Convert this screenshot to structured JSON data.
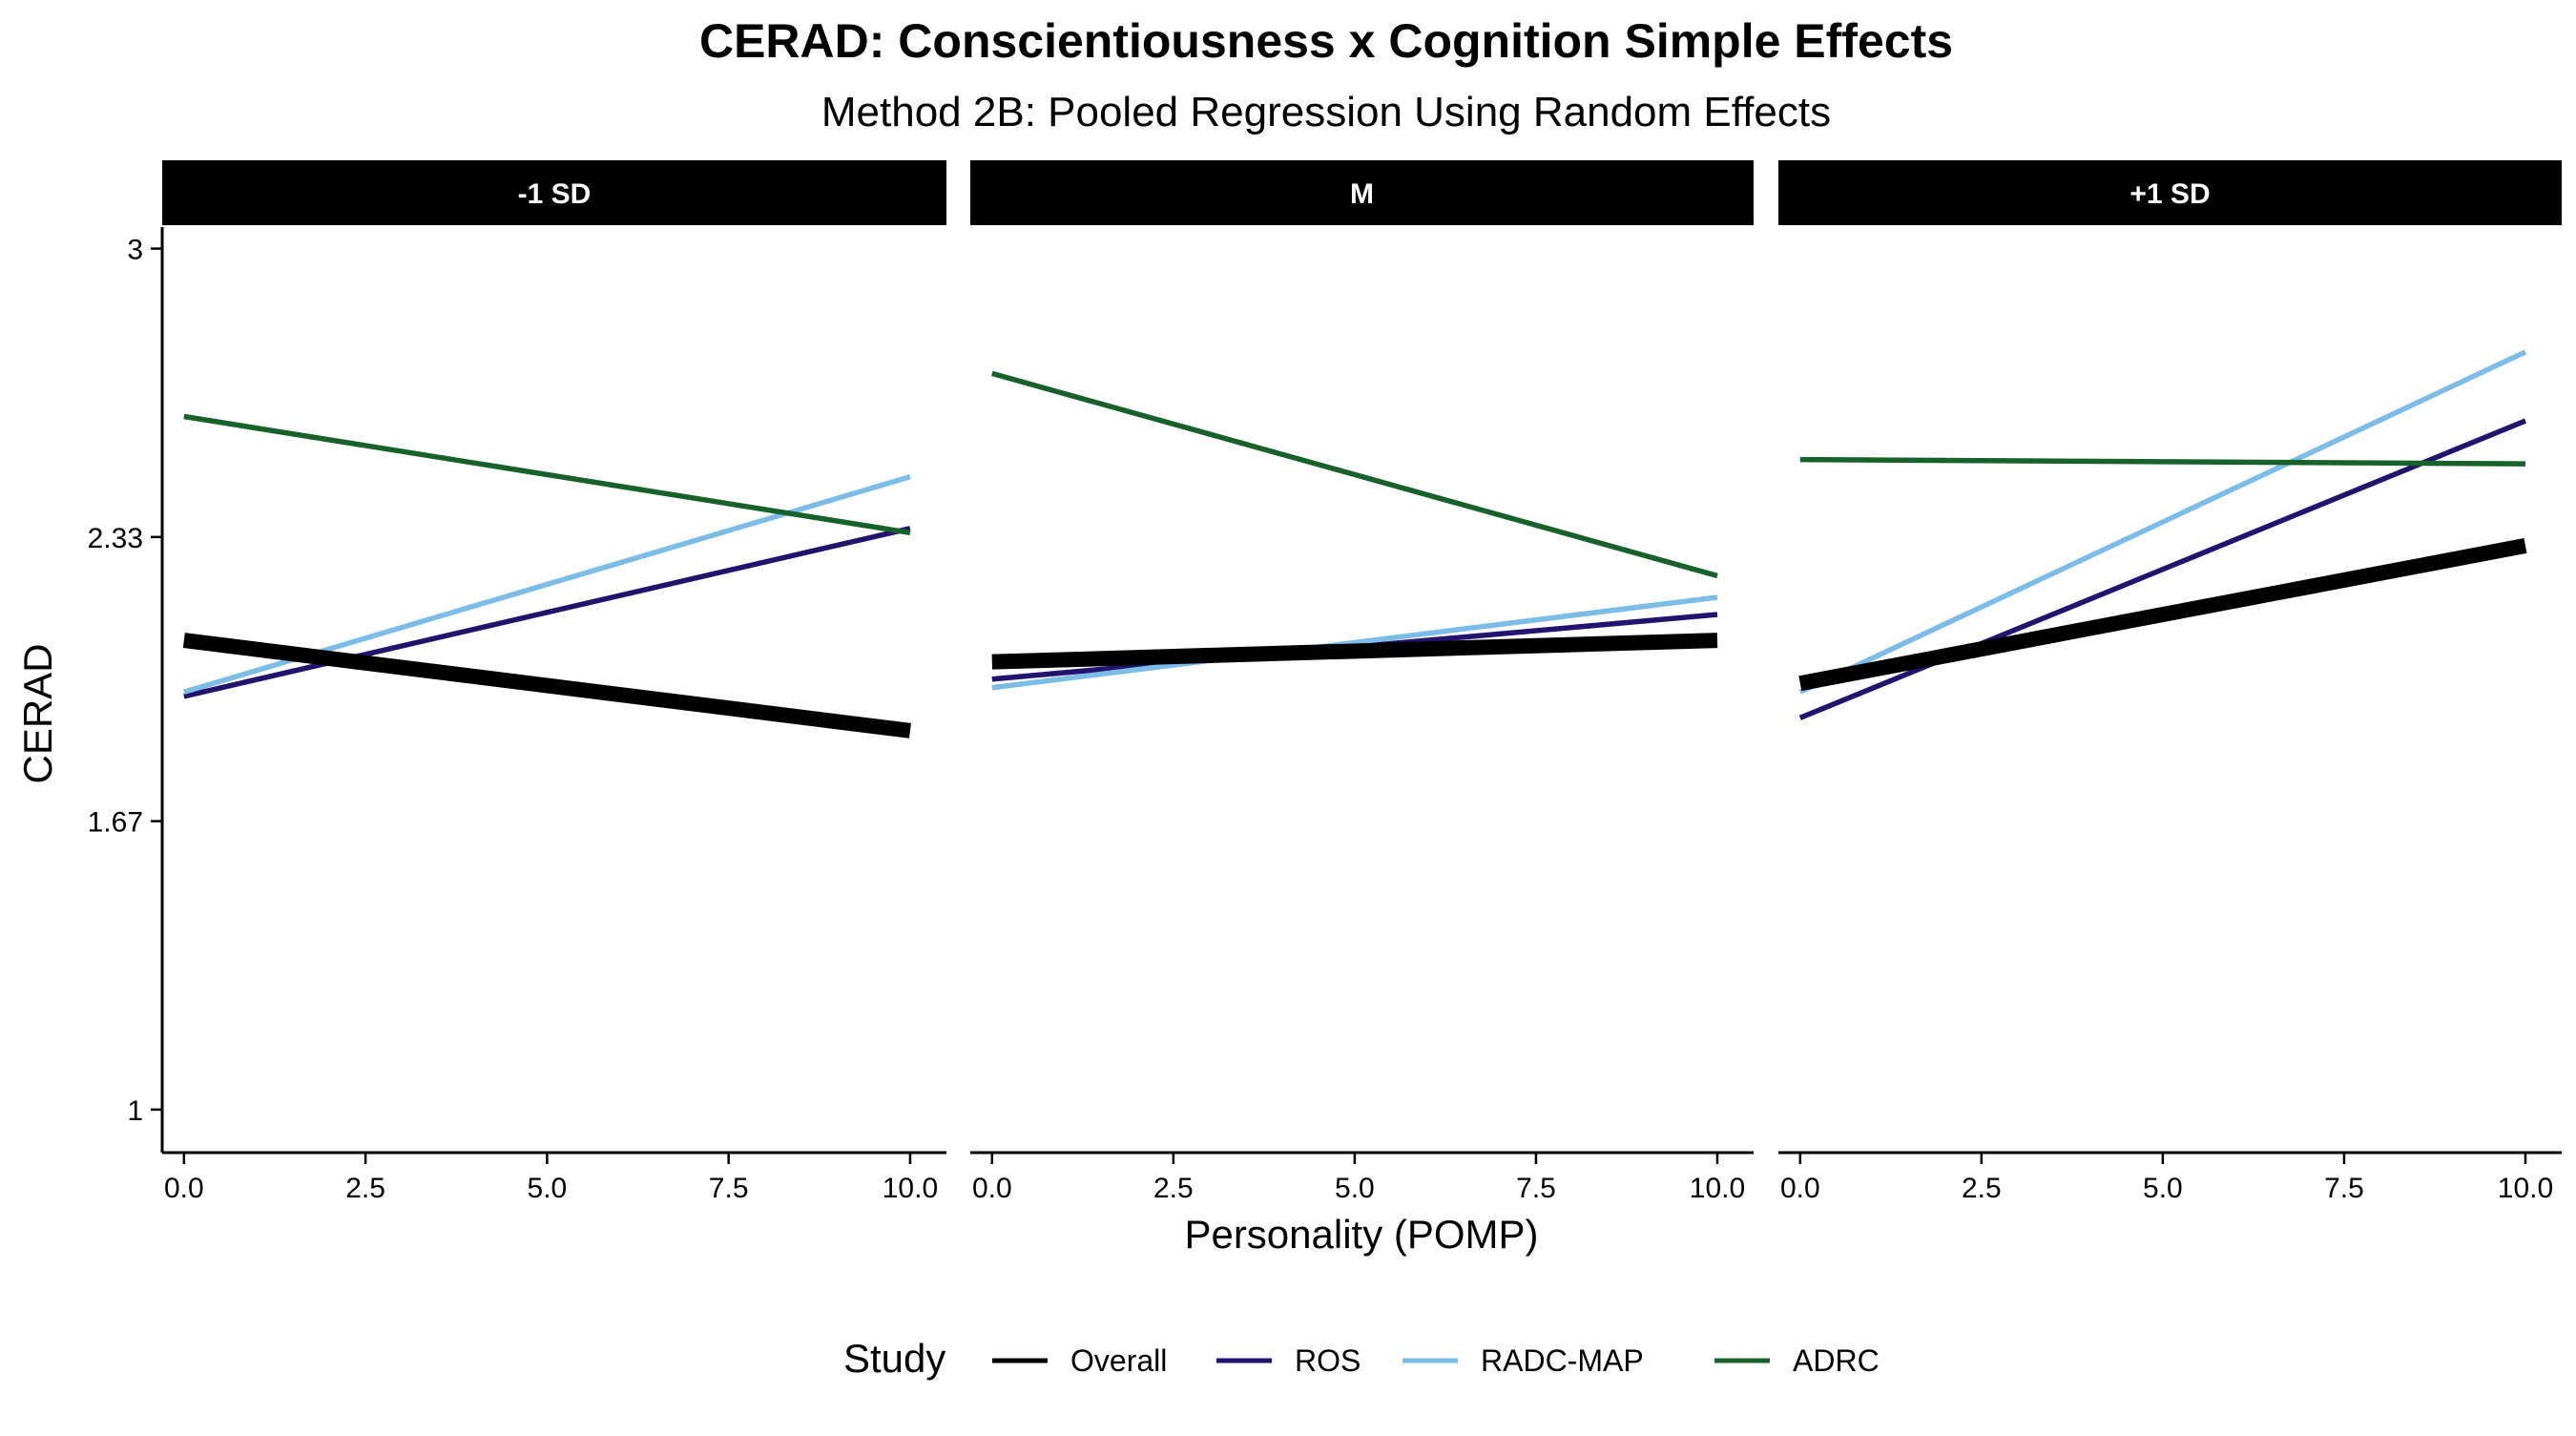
{
  "chart_data": {
    "type": "line",
    "title": "CERAD: Conscientiousness x Cognition Simple Effects",
    "subtitle": "Method 2B: Pooled Regression Using Random Effects",
    "xlabel": "Personality (POMP)",
    "ylabel": "CERAD",
    "xlim": [
      -0.3,
      10.5
    ],
    "ylim": [
      0.9,
      3.05
    ],
    "x_ticks": [
      "0.0",
      "2.5",
      "5.0",
      "7.5",
      "10.0"
    ],
    "x_tick_values": [
      0,
      2.5,
      5,
      7.5,
      10
    ],
    "y_ticks": [
      "1",
      "1.67",
      "2.33",
      "3"
    ],
    "y_tick_values": [
      1,
      1.67,
      2.33,
      3
    ],
    "grid": false,
    "legend_position": "bottom",
    "legend_title": "Study",
    "legend": [
      {
        "name": "Overall",
        "color": "#000000"
      },
      {
        "name": "ROS",
        "color": "#24136e"
      },
      {
        "name": "RADC-MAP",
        "color": "#7bbde6"
      },
      {
        "name": "ADRC",
        "color": "#17622a"
      }
    ],
    "panels": [
      {
        "label": "-1 SD",
        "series": [
          {
            "name": "Overall",
            "x": [
              0,
              10
            ],
            "y": [
              2.09,
              1.88
            ]
          },
          {
            "name": "ROS",
            "x": [
              0,
              10
            ],
            "y": [
              1.96,
              2.35
            ]
          },
          {
            "name": "RADC-MAP",
            "x": [
              0,
              10
            ],
            "y": [
              1.97,
              2.47
            ]
          },
          {
            "name": "ADRC",
            "x": [
              0,
              10
            ],
            "y": [
              2.61,
              2.34
            ]
          }
        ]
      },
      {
        "label": "M",
        "series": [
          {
            "name": "Overall",
            "x": [
              0,
              10
            ],
            "y": [
              2.04,
              2.09
            ]
          },
          {
            "name": "ROS",
            "x": [
              0,
              10
            ],
            "y": [
              2.0,
              2.15
            ]
          },
          {
            "name": "RADC-MAP",
            "x": [
              0,
              10
            ],
            "y": [
              1.98,
              2.19
            ]
          },
          {
            "name": "ADRC",
            "x": [
              0,
              10
            ],
            "y": [
              2.71,
              2.24
            ]
          }
        ]
      },
      {
        "label": "+1 SD",
        "series": [
          {
            "name": "Overall",
            "x": [
              0,
              10
            ],
            "y": [
              1.99,
              2.31
            ]
          },
          {
            "name": "ROS",
            "x": [
              0,
              10
            ],
            "y": [
              1.91,
              2.6
            ]
          },
          {
            "name": "RADC-MAP",
            "x": [
              0,
              10
            ],
            "y": [
              1.97,
              2.76
            ]
          },
          {
            "name": "ADRC",
            "x": [
              0,
              10
            ],
            "y": [
              2.51,
              2.5
            ]
          }
        ]
      }
    ]
  }
}
